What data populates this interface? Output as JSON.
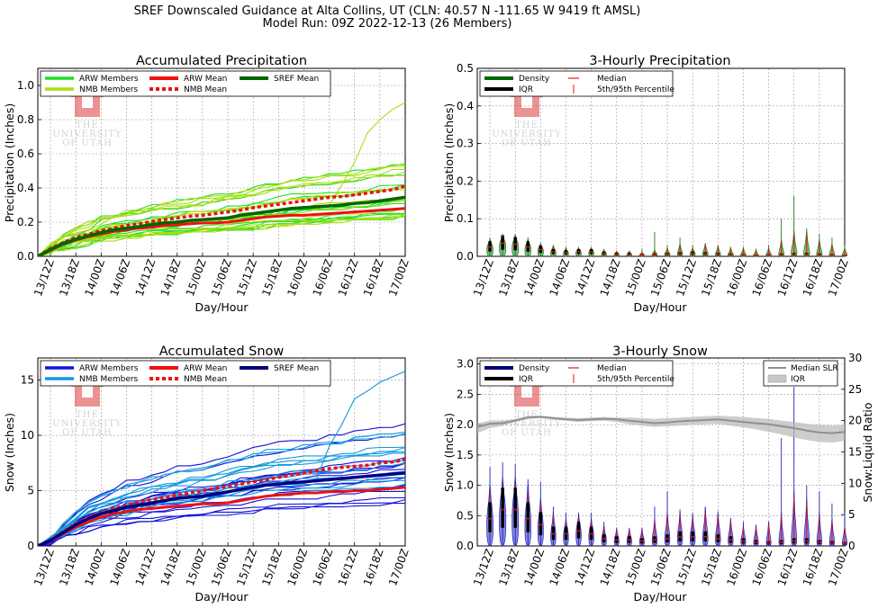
{
  "suptitle": {
    "line1": "SREF Downscaled Guidance at Alta Collins, UT (CLN: 40.57 N -111.65 W 9419 ft AMSL)",
    "line2": "Model Run: 09Z 2022-12-13 (26 Members)"
  },
  "logo": {
    "line1": "THE",
    "line2": "UNIVERSITY",
    "line3": "OF UTAH"
  },
  "time_labels": [
    "13/12Z",
    "13/18Z",
    "14/00Z",
    "14/06Z",
    "14/12Z",
    "14/18Z",
    "15/00Z",
    "15/06Z",
    "15/12Z",
    "15/18Z",
    "16/00Z",
    "16/06Z",
    "16/12Z",
    "16/18Z",
    "17/00Z"
  ],
  "colors": {
    "arw_precip": "#22dd22",
    "nmb_precip": "#aadd11",
    "sref_precip_mean": "#006600",
    "arw_snow": "#1111dd",
    "nmb_snow": "#1199dd",
    "sref_snow_mean": "#000080",
    "mean_red": "#ee1111",
    "density_precip": "#3a9a3a",
    "density_snow": "#4a4ad0",
    "slr_gray": "#909090"
  },
  "chart_data": [
    {
      "id": "accum-precip",
      "type": "line",
      "title": "Accumulated Precipitation",
      "xlabel": "Day/Hour",
      "ylabel": "Precipitation (Inches)",
      "ylim": [
        0,
        1.1
      ],
      "yticks": [
        "0.0",
        "0.2",
        "0.4",
        "0.6",
        "0.8",
        "1.0"
      ],
      "grid": true,
      "legend_position": "top-left",
      "legend": [
        "ARW Members",
        "NMB Members",
        "SREF Mean",
        "ARW Mean",
        "NMB Mean"
      ],
      "x": [
        0,
        1,
        2,
        3,
        4,
        5,
        6,
        7,
        8,
        9,
        10,
        11,
        12,
        13,
        14,
        15,
        16,
        17,
        18,
        19,
        20,
        21,
        22,
        23,
        24,
        25,
        26,
        27,
        28,
        29
      ],
      "series": [
        {
          "name": "SREF Mean",
          "values": [
            0,
            0.04,
            0.075,
            0.1,
            0.12,
            0.14,
            0.155,
            0.165,
            0.175,
            0.185,
            0.195,
            0.2,
            0.21,
            0.215,
            0.22,
            0.225,
            0.24,
            0.25,
            0.26,
            0.27,
            0.28,
            0.285,
            0.29,
            0.295,
            0.3,
            0.31,
            0.315,
            0.325,
            0.335,
            0.345
          ]
        },
        {
          "name": "ARW Mean",
          "values": [
            0,
            0.035,
            0.07,
            0.095,
            0.115,
            0.13,
            0.145,
            0.155,
            0.165,
            0.17,
            0.18,
            0.185,
            0.19,
            0.195,
            0.195,
            0.2,
            0.21,
            0.22,
            0.23,
            0.235,
            0.24,
            0.24,
            0.245,
            0.25,
            0.255,
            0.26,
            0.265,
            0.27,
            0.275,
            0.28
          ]
        },
        {
          "name": "NMB Mean",
          "values": [
            0,
            0.045,
            0.08,
            0.11,
            0.13,
            0.15,
            0.165,
            0.18,
            0.19,
            0.205,
            0.215,
            0.225,
            0.235,
            0.24,
            0.25,
            0.26,
            0.27,
            0.285,
            0.295,
            0.305,
            0.315,
            0.325,
            0.335,
            0.345,
            0.35,
            0.36,
            0.37,
            0.38,
            0.39,
            0.41
          ]
        }
      ]
    },
    {
      "id": "three-hourly-precip",
      "type": "violin",
      "title": "3-Hourly Precipitation",
      "xlabel": "Day/Hour",
      "ylabel": "Precipitation (Inches)",
      "ylim": [
        0,
        0.5
      ],
      "yticks": [
        "0.0",
        "0.1",
        "0.2",
        "0.3",
        "0.4",
        "0.5"
      ],
      "grid": true,
      "legend_position": "top-left",
      "legend": [
        "Density",
        "IQR",
        "Median",
        "5th/95th Percentile"
      ],
      "median": [
        0.025,
        0.035,
        0.032,
        0.025,
        0.018,
        0.012,
        0.01,
        0.012,
        0.012,
        0.008,
        0.006,
        0.006,
        0.004,
        0.005,
        0.006,
        0.007,
        0.008,
        0.007,
        0.006,
        0.005,
        0.004,
        0.003,
        0.004,
        0.005,
        0.006,
        0.006,
        0.005,
        0.004,
        0.003
      ],
      "spread": [
        0.045,
        0.05,
        0.05,
        0.04,
        0.03,
        0.025,
        0.02,
        0.025,
        0.02,
        0.018,
        0.015,
        0.015,
        0.015,
        0.02,
        0.025,
        0.02,
        0.02,
        0.025,
        0.02,
        0.025,
        0.02,
        0.018,
        0.02,
        0.025,
        0.035,
        0.04,
        0.03,
        0.025,
        0.02
      ],
      "p95": [
        0.04,
        0.05,
        0.05,
        0.04,
        0.03,
        0.025,
        0.02,
        0.02,
        0.02,
        0.015,
        0.012,
        0.012,
        0.01,
        0.015,
        0.02,
        0.03,
        0.02,
        0.03,
        0.025,
        0.02,
        0.02,
        0.015,
        0.02,
        0.04,
        0.06,
        0.06,
        0.04,
        0.03,
        0.02
      ],
      "max": [
        0.05,
        0.06,
        0.06,
        0.05,
        0.035,
        0.03,
        0.025,
        0.025,
        0.025,
        0.02,
        0.015,
        0.015,
        0.02,
        0.065,
        0.03,
        0.05,
        0.03,
        0.035,
        0.03,
        0.025,
        0.025,
        0.02,
        0.03,
        0.1,
        0.16,
        0.075,
        0.06,
        0.05,
        0.03
      ]
    },
    {
      "id": "accum-snow",
      "type": "line",
      "title": "Accumulated Snow",
      "xlabel": "Day/Hour",
      "ylabel": "Snow (Inches)",
      "ylim": [
        0,
        17
      ],
      "yticks": [
        "0",
        "5",
        "10",
        "15"
      ],
      "grid": true,
      "legend_position": "top-left",
      "legend": [
        "ARW Members",
        "NMB Members",
        "SREF Mean",
        "ARW Mean",
        "NMB Mean"
      ],
      "x": [
        0,
        1,
        2,
        3,
        4,
        5,
        6,
        7,
        8,
        9,
        10,
        11,
        12,
        13,
        14,
        15,
        16,
        17,
        18,
        19,
        20,
        21,
        22,
        23,
        24,
        25,
        26,
        27,
        28,
        29
      ],
      "series": [
        {
          "name": "SREF Mean",
          "values": [
            0,
            0.5,
            1.2,
            1.9,
            2.5,
            2.9,
            3.2,
            3.5,
            3.7,
            3.9,
            4.1,
            4.3,
            4.4,
            4.5,
            4.7,
            4.9,
            5.1,
            5.3,
            5.5,
            5.6,
            5.7,
            5.8,
            5.9,
            6.0,
            6.1,
            6.2,
            6.3,
            6.4,
            6.5,
            6.6
          ]
        },
        {
          "name": "ARW Mean",
          "values": [
            0,
            0.45,
            1.1,
            1.7,
            2.2,
            2.6,
            2.9,
            3.1,
            3.3,
            3.4,
            3.5,
            3.6,
            3.7,
            3.8,
            3.8,
            3.9,
            4.1,
            4.3,
            4.5,
            4.6,
            4.7,
            4.8,
            4.8,
            4.9,
            4.9,
            5.0,
            5.0,
            5.1,
            5.2,
            5.3
          ]
        },
        {
          "name": "NMB Mean",
          "values": [
            0,
            0.55,
            1.3,
            2.0,
            2.6,
            3.0,
            3.4,
            3.7,
            4.0,
            4.2,
            4.4,
            4.6,
            4.8,
            5.0,
            5.2,
            5.4,
            5.6,
            5.8,
            6.0,
            6.2,
            6.4,
            6.6,
            6.8,
            7.0,
            7.1,
            7.2,
            7.3,
            7.5,
            7.6,
            7.8
          ]
        }
      ]
    },
    {
      "id": "three-hourly-snow",
      "type": "violin",
      "title": "3-Hourly Snow",
      "xlabel": "Day/Hour",
      "ylabel": "Snow (Inches)",
      "ylabel_right": "Snow:Liquid Ratio",
      "ylim": [
        0,
        3.1
      ],
      "ylim_right": [
        0,
        30
      ],
      "yticks": [
        "0.0",
        "0.5",
        "1.0",
        "1.5",
        "2.0",
        "2.5",
        "3.0"
      ],
      "yticks_right": [
        "0",
        "5",
        "10",
        "15",
        "20",
        "25",
        "30"
      ],
      "grid": true,
      "legend_position": "top-left",
      "legend": [
        "Density",
        "IQR",
        "Median",
        "5th/95th Percentile"
      ],
      "legend_right": [
        "Median SLR",
        "IQR"
      ],
      "median": [
        0.45,
        0.6,
        0.6,
        0.45,
        0.35,
        0.2,
        0.2,
        0.25,
        0.2,
        0.12,
        0.1,
        0.1,
        0.08,
        0.1,
        0.12,
        0.15,
        0.15,
        0.15,
        0.12,
        0.1,
        0.08,
        0.06,
        0.05,
        0.06,
        0.08,
        0.08,
        0.06,
        0.05,
        0.04
      ],
      "spread": [
        0.8,
        0.85,
        0.8,
        0.7,
        0.5,
        0.35,
        0.3,
        0.35,
        0.3,
        0.2,
        0.18,
        0.2,
        0.2,
        0.3,
        0.35,
        0.35,
        0.35,
        0.4,
        0.35,
        0.3,
        0.25,
        0.2,
        0.2,
        0.25,
        0.4,
        0.4,
        0.3,
        0.3,
        0.25
      ],
      "p95": [
        0.9,
        1.0,
        1.0,
        0.9,
        0.7,
        0.5,
        0.4,
        0.45,
        0.4,
        0.3,
        0.25,
        0.25,
        0.25,
        0.4,
        0.5,
        0.5,
        0.45,
        0.55,
        0.5,
        0.4,
        0.3,
        0.3,
        0.35,
        0.5,
        0.8,
        0.7,
        0.5,
        0.4,
        0.3
      ],
      "max": [
        1.3,
        1.38,
        1.35,
        1.1,
        1.05,
        0.65,
        0.55,
        0.55,
        0.55,
        0.4,
        0.3,
        0.3,
        0.3,
        0.65,
        0.9,
        0.6,
        0.55,
        0.65,
        0.5,
        0.45,
        0.4,
        0.35,
        0.4,
        1.78,
        2.62,
        1.0,
        0.9,
        0.7,
        0.55
      ],
      "slr_median": [
        19,
        19.5,
        19.6,
        20,
        20.5,
        20.6,
        20.4,
        20.2,
        20.1,
        20.2,
        20.3,
        20.2,
        20,
        19.8,
        19.6,
        19.7,
        19.9,
        20,
        20.1,
        20.2,
        20,
        19.8,
        19.6,
        19.4,
        19.1,
        18.8,
        18.4,
        18.1,
        18,
        18.2
      ],
      "slr_iqr_low": [
        18,
        18.8,
        19.2,
        19.8,
        20.3,
        20.4,
        20.2,
        20,
        19.8,
        19.9,
        20,
        19.8,
        19.4,
        19.2,
        19,
        19.1,
        19.2,
        19.3,
        19.4,
        19.5,
        19.2,
        18.9,
        18.6,
        18.2,
        17.8,
        17.3,
        16.9,
        16.6,
        16.5,
        16.8
      ],
      "slr_iqr_high": [
        19.6,
        20,
        20,
        20.3,
        20.8,
        20.8,
        20.6,
        20.5,
        20.4,
        20.5,
        20.6,
        20.5,
        20.5,
        20.4,
        20.3,
        20.4,
        20.5,
        20.6,
        20.7,
        20.8,
        20.7,
        20.6,
        20.4,
        20.3,
        20,
        19.8,
        19.5,
        19.3,
        19.2,
        19.3
      ]
    }
  ]
}
